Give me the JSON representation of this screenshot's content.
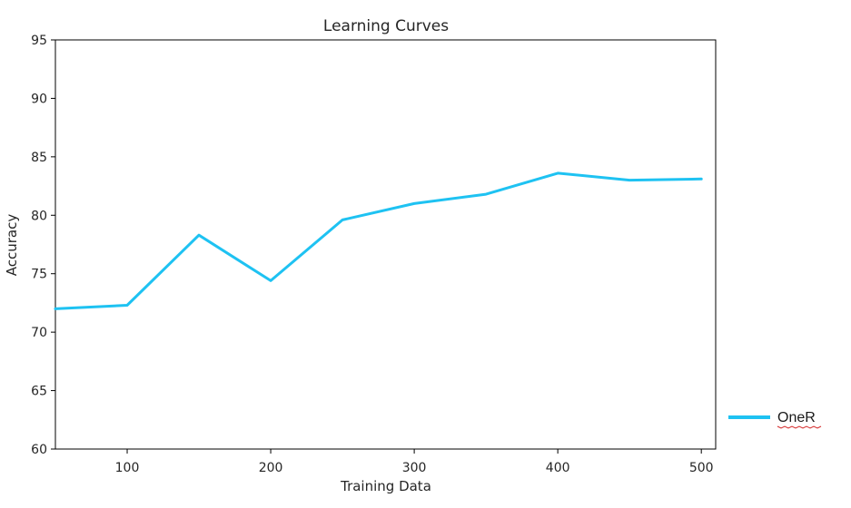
{
  "chart_data": {
    "type": "line",
    "title": "Learning Curves",
    "xlabel": "Training Data",
    "ylabel": "Accuracy",
    "xlim": [
      50,
      510
    ],
    "ylim": [
      60,
      95
    ],
    "xticks": [
      100,
      200,
      300,
      400,
      500
    ],
    "yticks": [
      60,
      65,
      70,
      75,
      80,
      85,
      90,
      95
    ],
    "grid": false,
    "legend_position": "right",
    "series": [
      {
        "name": "OneR",
        "color": "#1ec2f2",
        "x": [
          50,
          100,
          150,
          200,
          250,
          300,
          350,
          400,
          450,
          500
        ],
        "y": [
          72.0,
          72.3,
          78.3,
          74.4,
          79.6,
          81.0,
          81.8,
          83.6,
          83.0,
          83.1
        ]
      }
    ]
  }
}
